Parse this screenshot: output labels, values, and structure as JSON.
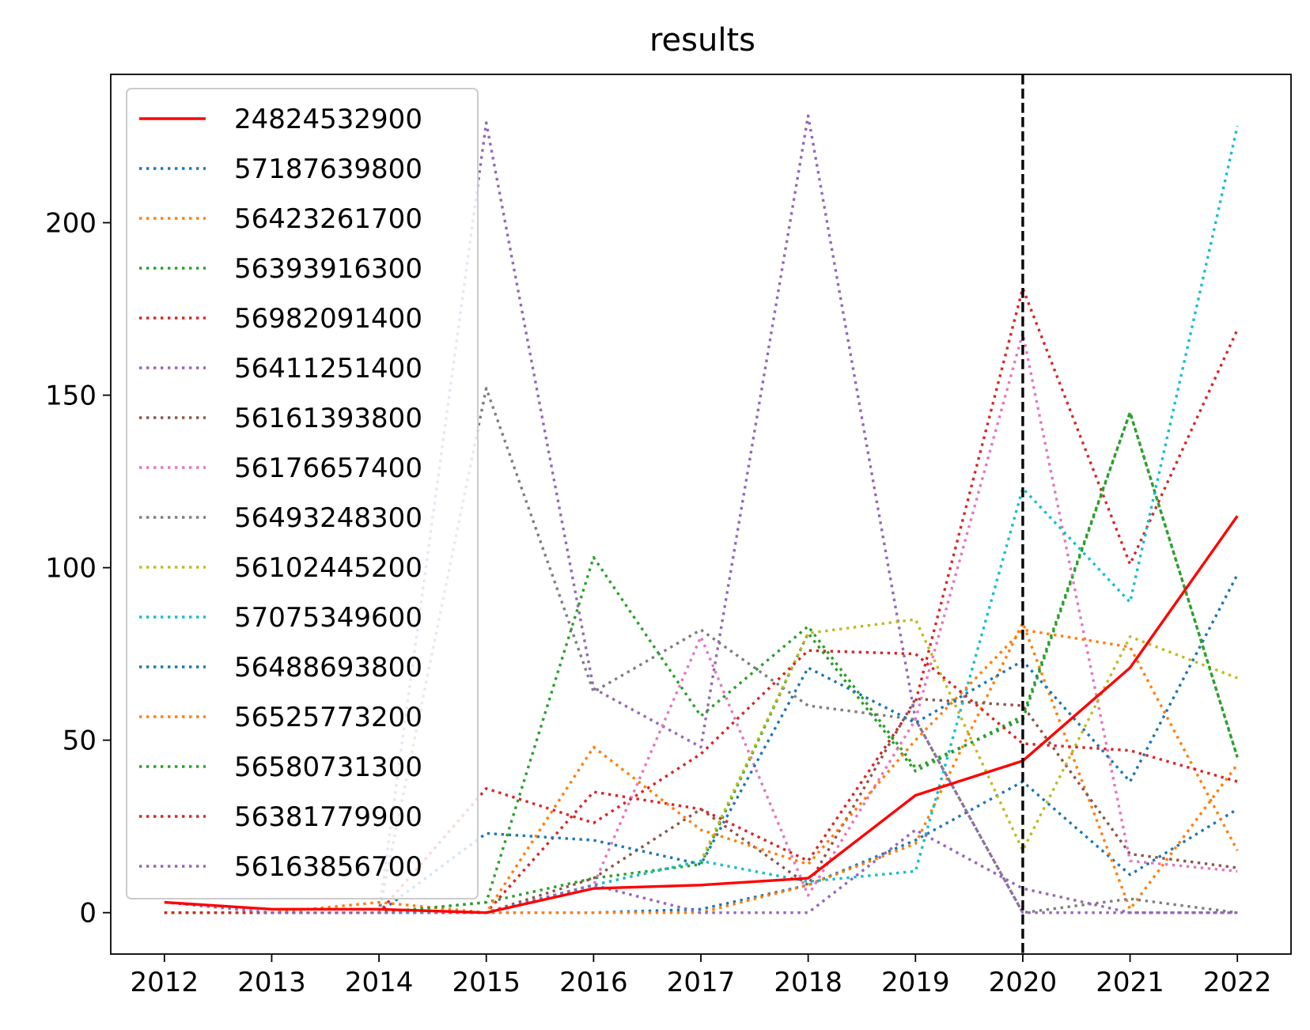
{
  "chart_data": {
    "type": "line",
    "title": "results",
    "xlabel": "",
    "ylabel": "",
    "x": [
      2012,
      2013,
      2014,
      2015,
      2016,
      2017,
      2018,
      2019,
      2020,
      2021,
      2022
    ],
    "xlim": [
      2011.5,
      2022.5
    ],
    "ylim": [
      -12,
      243
    ],
    "yticks": [
      0,
      50,
      100,
      150,
      200
    ],
    "grid": false,
    "legend_position": "upper-left",
    "vline": {
      "x": 2020,
      "color": "#000000",
      "style": "dashed"
    },
    "series": [
      {
        "name": "24824532900",
        "color": "#ff0000",
        "style": "solid",
        "values": [
          3,
          1,
          1,
          0,
          7,
          8,
          10,
          34,
          44,
          71,
          115
        ]
      },
      {
        "name": "57187639800",
        "color": "#1f77b4",
        "style": "dotted",
        "values": [
          0,
          0,
          0,
          0,
          0,
          1,
          8,
          21,
          38,
          11,
          30
        ]
      },
      {
        "name": "56423261700",
        "color": "#ff7f0e",
        "style": "dotted",
        "values": [
          0,
          0,
          0,
          0,
          0,
          0,
          8,
          20,
          84,
          1,
          43
        ]
      },
      {
        "name": "56393916300",
        "color": "#2ca02c",
        "style": "dotted",
        "values": [
          0,
          0,
          0,
          3,
          10,
          14,
          81,
          41,
          57,
          145,
          45
        ]
      },
      {
        "name": "56982091400",
        "color": "#d62728",
        "style": "dotted",
        "values": [
          0,
          0,
          0,
          0,
          35,
          30,
          15,
          61,
          181,
          101,
          169
        ]
      },
      {
        "name": "56411251400",
        "color": "#9467bd",
        "style": "dotted",
        "values": [
          0,
          0,
          0,
          229,
          65,
          48,
          231,
          56,
          0,
          0,
          0
        ]
      },
      {
        "name": "56161393800",
        "color": "#8c564b",
        "style": "dotted",
        "values": [
          0,
          0,
          0,
          0,
          10,
          30,
          8,
          62,
          60,
          17,
          13
        ]
      },
      {
        "name": "56176657400",
        "color": "#e377c2",
        "style": "dotted",
        "values": [
          0,
          0,
          0,
          0,
          8,
          80,
          5,
          56,
          168,
          15,
          12
        ]
      },
      {
        "name": "56493248300",
        "color": "#7f7f7f",
        "style": "dotted",
        "values": [
          0,
          0,
          0,
          152,
          64,
          82,
          60,
          56,
          0,
          4,
          0
        ]
      },
      {
        "name": "56102445200",
        "color": "#bcbd22",
        "style": "dotted",
        "values": [
          0,
          0,
          0,
          0,
          8,
          15,
          81,
          85,
          18,
          80,
          68
        ]
      },
      {
        "name": "57075349600",
        "color": "#17becf",
        "style": "dotted",
        "values": [
          0,
          0,
          0,
          0,
          8,
          15,
          9,
          12,
          123,
          90,
          228
        ]
      },
      {
        "name": "56488693800",
        "color": "#1f77b4",
        "style": "dotted",
        "values": [
          0,
          0,
          0,
          23,
          21,
          14,
          71,
          55,
          73,
          38,
          98
        ]
      },
      {
        "name": "56525773200",
        "color": "#ff7f0e",
        "style": "dotted",
        "values": [
          0,
          0,
          3,
          0,
          48,
          24,
          14,
          50,
          82,
          77,
          18
        ]
      },
      {
        "name": "56580731300",
        "color": "#2ca02c",
        "style": "dotted",
        "values": [
          0,
          0,
          0,
          3,
          103,
          57,
          83,
          42,
          56,
          145,
          45
        ]
      },
      {
        "name": "56381779900",
        "color": "#d62728",
        "style": "dotted",
        "values": [
          0,
          0,
          0,
          36,
          26,
          46,
          76,
          75,
          49,
          47,
          38
        ]
      },
      {
        "name": "56163856700",
        "color": "#9467bd",
        "style": "dotted",
        "values": [
          3,
          0,
          0,
          0,
          8,
          0,
          0,
          24,
          7,
          0,
          0
        ]
      }
    ]
  }
}
